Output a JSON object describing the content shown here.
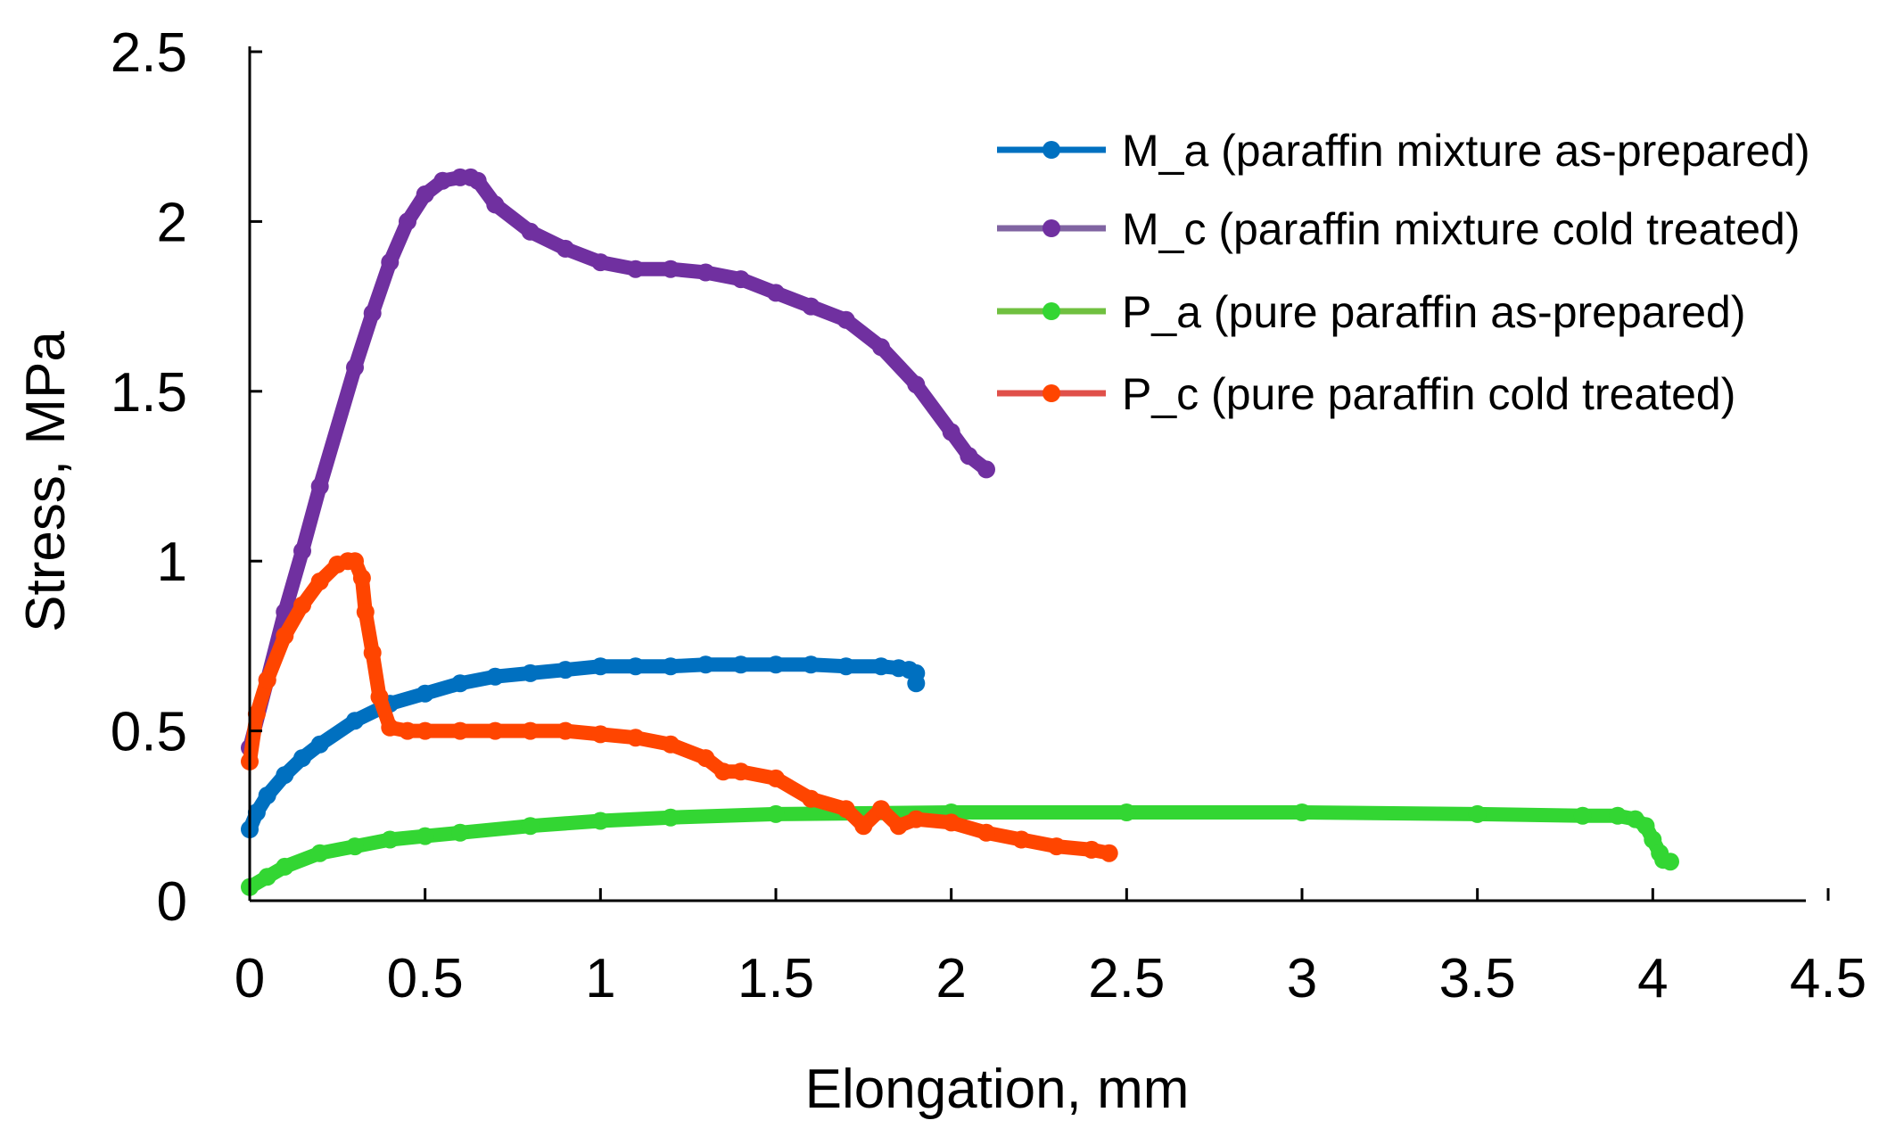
{
  "chart_data": {
    "type": "scatter",
    "title": "",
    "xlabel": "Elongation, mm",
    "ylabel": "Stress, MPa",
    "xlim": [
      0,
      4.5
    ],
    "ylim": [
      0,
      2.5
    ],
    "xticks": [
      "0",
      "0.5",
      "1",
      "1.5",
      "2",
      "2.5",
      "3",
      "3.5",
      "4",
      "4.5"
    ],
    "yticks": [
      "0",
      "0.5",
      "1",
      "1.5",
      "2",
      "2.5"
    ],
    "grid": false,
    "legend_position": "top-right",
    "series": [
      {
        "name": "M_a (paraffin mixture as-prepared)",
        "color": "#0070C0",
        "legend_color": "#0070C0",
        "x": [
          0.0,
          0.02,
          0.05,
          0.1,
          0.15,
          0.2,
          0.3,
          0.4,
          0.5,
          0.6,
          0.7,
          0.8,
          0.9,
          1.0,
          1.1,
          1.2,
          1.3,
          1.4,
          1.5,
          1.6,
          1.7,
          1.8,
          1.85,
          1.88,
          1.9,
          1.9
        ],
        "y": [
          0.21,
          0.26,
          0.31,
          0.37,
          0.42,
          0.46,
          0.53,
          0.58,
          0.61,
          0.64,
          0.66,
          0.67,
          0.68,
          0.69,
          0.69,
          0.69,
          0.695,
          0.695,
          0.695,
          0.695,
          0.69,
          0.69,
          0.685,
          0.68,
          0.67,
          0.64
        ]
      },
      {
        "name": "M_c (paraffin mixture cold treated)",
        "color": "#7030A0",
        "legend_color": "#8064A2",
        "x": [
          0.0,
          0.05,
          0.1,
          0.15,
          0.2,
          0.3,
          0.35,
          0.4,
          0.45,
          0.5,
          0.55,
          0.6,
          0.63,
          0.65,
          0.7,
          0.8,
          0.9,
          1.0,
          1.1,
          1.2,
          1.3,
          1.4,
          1.5,
          1.6,
          1.7,
          1.8,
          1.9,
          2.0,
          2.05,
          2.1
        ],
        "y": [
          0.45,
          0.65,
          0.85,
          1.03,
          1.22,
          1.57,
          1.73,
          1.88,
          2.0,
          2.08,
          2.12,
          2.13,
          2.13,
          2.12,
          2.05,
          1.97,
          1.92,
          1.88,
          1.86,
          1.86,
          1.85,
          1.83,
          1.79,
          1.75,
          1.71,
          1.63,
          1.52,
          1.38,
          1.31,
          1.27
        ]
      },
      {
        "name": "P_a (pure paraffin as-prepared)",
        "color": "#33D633",
        "legend_color": "#70C040",
        "x": [
          0.0,
          0.05,
          0.1,
          0.2,
          0.3,
          0.4,
          0.5,
          0.6,
          0.8,
          1.0,
          1.2,
          1.5,
          2.0,
          2.5,
          3.0,
          3.5,
          3.8,
          3.9,
          3.95,
          3.98,
          4.0,
          4.02,
          4.03,
          4.05
        ],
        "y": [
          0.04,
          0.07,
          0.1,
          0.14,
          0.16,
          0.18,
          0.19,
          0.2,
          0.22,
          0.235,
          0.245,
          0.255,
          0.26,
          0.26,
          0.26,
          0.255,
          0.25,
          0.25,
          0.24,
          0.22,
          0.18,
          0.14,
          0.12,
          0.115
        ]
      },
      {
        "name": "P_c (pure paraffin cold treated)",
        "color": "#FF4500",
        "legend_color": "#E0504A",
        "x": [
          0.0,
          0.02,
          0.05,
          0.1,
          0.15,
          0.2,
          0.25,
          0.28,
          0.3,
          0.32,
          0.33,
          0.35,
          0.37,
          0.4,
          0.45,
          0.5,
          0.6,
          0.7,
          0.8,
          0.9,
          1.0,
          1.1,
          1.2,
          1.3,
          1.35,
          1.4,
          1.5,
          1.6,
          1.7,
          1.75,
          1.8,
          1.85,
          1.9,
          2.0,
          2.1,
          2.2,
          2.3,
          2.4,
          2.45
        ],
        "y": [
          0.41,
          0.55,
          0.65,
          0.78,
          0.87,
          0.94,
          0.99,
          1.0,
          1.0,
          0.95,
          0.85,
          0.73,
          0.6,
          0.51,
          0.5,
          0.5,
          0.5,
          0.5,
          0.5,
          0.5,
          0.49,
          0.48,
          0.46,
          0.42,
          0.38,
          0.38,
          0.36,
          0.3,
          0.27,
          0.22,
          0.27,
          0.22,
          0.24,
          0.23,
          0.2,
          0.18,
          0.16,
          0.15,
          0.14
        ]
      }
    ]
  }
}
